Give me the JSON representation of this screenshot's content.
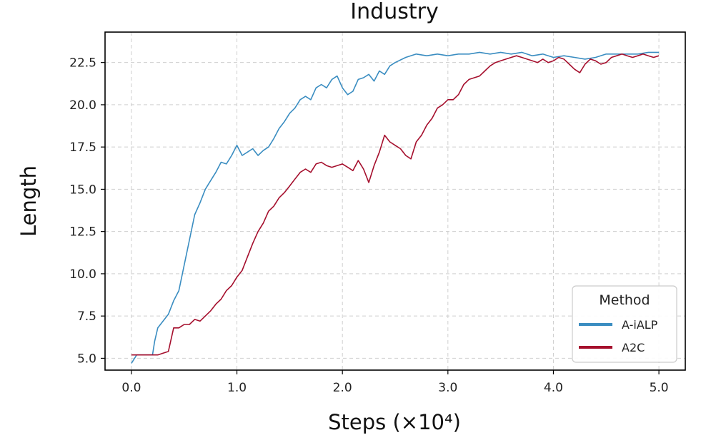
{
  "chart_data": {
    "type": "line",
    "title": "Industry",
    "xlabel": "Steps (×10⁴)",
    "ylabel": "Length",
    "xlim": [
      -0.25,
      5.25
    ],
    "ylim": [
      4.3,
      24.3
    ],
    "xticks": [
      0.0,
      1.0,
      2.0,
      3.0,
      4.0,
      5.0
    ],
    "xtick_labels": [
      "0.0",
      "1.0",
      "2.0",
      "3.0",
      "4.0",
      "5.0"
    ],
    "yticks": [
      5.0,
      7.5,
      10.0,
      12.5,
      15.0,
      17.5,
      20.0,
      22.5
    ],
    "ytick_labels": [
      "5.0",
      "7.5",
      "10.0",
      "12.5",
      "15.0",
      "17.5",
      "20.0",
      "22.5"
    ],
    "grid": true,
    "legend": {
      "title": "Method",
      "placement": "bottom-right"
    },
    "series": [
      {
        "name": "A-iALP",
        "color": "#3a8dc1",
        "x": [
          0.0,
          0.05,
          0.1,
          0.15,
          0.2,
          0.22,
          0.25,
          0.3,
          0.35,
          0.4,
          0.45,
          0.5,
          0.55,
          0.6,
          0.65,
          0.7,
          0.75,
          0.8,
          0.85,
          0.9,
          0.95,
          1.0,
          1.05,
          1.1,
          1.15,
          1.2,
          1.25,
          1.3,
          1.35,
          1.4,
          1.45,
          1.5,
          1.55,
          1.6,
          1.65,
          1.7,
          1.75,
          1.8,
          1.85,
          1.9,
          1.95,
          2.0,
          2.05,
          2.1,
          2.15,
          2.2,
          2.25,
          2.3,
          2.35,
          2.4,
          2.45,
          2.5,
          2.6,
          2.7,
          2.8,
          2.9,
          3.0,
          3.1,
          3.2,
          3.3,
          3.4,
          3.5,
          3.6,
          3.7,
          3.8,
          3.9,
          4.0,
          4.1,
          4.2,
          4.3,
          4.4,
          4.5,
          4.6,
          4.7,
          4.8,
          4.9,
          5.0
        ],
        "y": [
          4.7,
          5.2,
          5.2,
          5.2,
          5.2,
          6.0,
          6.8,
          7.2,
          7.6,
          8.4,
          9.0,
          10.5,
          12.0,
          13.5,
          14.2,
          15.0,
          15.5,
          16.0,
          16.6,
          16.5,
          17.0,
          17.6,
          17.0,
          17.2,
          17.4,
          17.0,
          17.3,
          17.5,
          18.0,
          18.6,
          19.0,
          19.5,
          19.8,
          20.3,
          20.5,
          20.3,
          21.0,
          21.2,
          21.0,
          21.5,
          21.7,
          21.0,
          20.6,
          20.8,
          21.5,
          21.6,
          21.8,
          21.4,
          22.0,
          21.8,
          22.3,
          22.5,
          22.8,
          23.0,
          22.9,
          23.0,
          22.9,
          23.0,
          23.0,
          23.1,
          23.0,
          23.1,
          23.0,
          23.1,
          22.9,
          23.0,
          22.8,
          22.9,
          22.8,
          22.7,
          22.8,
          23.0,
          23.0,
          23.0,
          23.0,
          23.1,
          23.1
        ]
      },
      {
        "name": "A2C",
        "color": "#a50f2d",
        "x": [
          0.0,
          0.05,
          0.1,
          0.15,
          0.2,
          0.25,
          0.3,
          0.35,
          0.4,
          0.45,
          0.5,
          0.55,
          0.6,
          0.65,
          0.7,
          0.75,
          0.8,
          0.85,
          0.9,
          0.95,
          1.0,
          1.05,
          1.1,
          1.15,
          1.2,
          1.25,
          1.3,
          1.35,
          1.4,
          1.45,
          1.5,
          1.55,
          1.6,
          1.65,
          1.7,
          1.75,
          1.8,
          1.85,
          1.9,
          1.95,
          2.0,
          2.05,
          2.1,
          2.15,
          2.2,
          2.25,
          2.3,
          2.35,
          2.4,
          2.45,
          2.5,
          2.55,
          2.6,
          2.65,
          2.7,
          2.75,
          2.8,
          2.85,
          2.9,
          2.95,
          3.0,
          3.05,
          3.1,
          3.15,
          3.2,
          3.25,
          3.3,
          3.35,
          3.4,
          3.45,
          3.5,
          3.55,
          3.6,
          3.65,
          3.7,
          3.75,
          3.8,
          3.85,
          3.9,
          3.95,
          4.0,
          4.05,
          4.1,
          4.15,
          4.2,
          4.25,
          4.3,
          4.35,
          4.4,
          4.45,
          4.5,
          4.55,
          4.6,
          4.65,
          4.7,
          4.75,
          4.8,
          4.85,
          4.9,
          4.95,
          5.0
        ],
        "y": [
          5.2,
          5.2,
          5.2,
          5.2,
          5.2,
          5.2,
          5.3,
          5.4,
          6.8,
          6.8,
          7.0,
          7.0,
          7.3,
          7.2,
          7.5,
          7.8,
          8.2,
          8.5,
          9.0,
          9.3,
          9.8,
          10.2,
          11.0,
          11.8,
          12.5,
          13.0,
          13.7,
          14.0,
          14.5,
          14.8,
          15.2,
          15.6,
          16.0,
          16.2,
          16.0,
          16.5,
          16.6,
          16.4,
          16.3,
          16.4,
          16.5,
          16.3,
          16.1,
          16.7,
          16.2,
          15.4,
          16.4,
          17.2,
          18.2,
          17.8,
          17.6,
          17.4,
          17.0,
          16.8,
          17.8,
          18.2,
          18.8,
          19.2,
          19.8,
          20.0,
          20.3,
          20.3,
          20.6,
          21.2,
          21.5,
          21.6,
          21.7,
          22.0,
          22.3,
          22.5,
          22.6,
          22.7,
          22.8,
          22.9,
          22.8,
          22.7,
          22.6,
          22.5,
          22.7,
          22.5,
          22.6,
          22.8,
          22.7,
          22.4,
          22.1,
          21.9,
          22.4,
          22.7,
          22.6,
          22.4,
          22.5,
          22.8,
          22.9,
          23.0,
          22.9,
          22.8,
          22.9,
          23.0,
          22.9,
          22.8,
          22.9
        ]
      }
    ]
  }
}
